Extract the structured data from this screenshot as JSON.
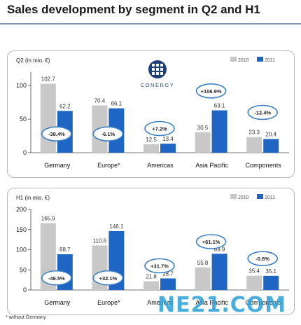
{
  "page_title": "Sales development by segment in Q2 and H1",
  "logo_text": "CONERGY",
  "footnote": "* without Germany",
  "watermark": "NE21.COM",
  "colors": {
    "series_2010": "#c8c8c8",
    "series_2011": "#1f66c4",
    "badge_border": "#3a7fc6",
    "axis": "#444444"
  },
  "chart_data": [
    {
      "type": "bar",
      "ylabel": "Q2 (in mio. €)",
      "ylim": [
        0,
        120
      ],
      "yticks": [
        0,
        50,
        100
      ],
      "categories": [
        "Germany",
        "Europe*",
        "Americas",
        "Asia Pacific",
        "Components"
      ],
      "series": [
        {
          "name": "2010",
          "values": [
            102.7,
            70.4,
            12.5,
            30.5,
            23.3
          ],
          "labels": [
            "102.7",
            "70.4",
            "12.5",
            "30.5",
            "23.3"
          ]
        },
        {
          "name": "2011",
          "values": [
            62.2,
            66.1,
            13.4,
            63.1,
            20.4
          ],
          "labels": [
            "62.2",
            "66.1",
            "13.4",
            "63.1",
            "20.4"
          ]
        }
      ],
      "changes": [
        {
          "label": "-39.4%",
          "value": 28
        },
        {
          "label": "-6.1%",
          "value": 28
        },
        {
          "label": "+7.2%",
          "value": 36
        },
        {
          "label": "+106.9%",
          "value": 92
        },
        {
          "label": "-12.4%",
          "value": 60
        }
      ],
      "legend": "top-right"
    },
    {
      "type": "bar",
      "ylabel": "H1 (in mio. €)",
      "ylim": [
        0,
        200
      ],
      "yticks": [
        0,
        50,
        100,
        150,
        200
      ],
      "categories": [
        "Germany",
        "Europe*",
        "Americas",
        "Asia Pacific",
        "Components"
      ],
      "series": [
        {
          "name": "2010",
          "values": [
            165.9,
            110.6,
            21.8,
            55.8,
            35.4
          ],
          "labels": [
            "165.9",
            "110.6",
            "21.8",
            "55.8",
            "35.4"
          ]
        },
        {
          "name": "2011",
          "values": [
            88.7,
            146.1,
            28.7,
            89.9,
            35.1
          ],
          "labels": [
            "88.7",
            "146.1",
            "28.7",
            "89.9",
            "35.1"
          ]
        }
      ],
      "changes": [
        {
          "label": "-46.5%",
          "value": 30
        },
        {
          "label": "+32.1%",
          "value": 30
        },
        {
          "label": "+31.7%",
          "value": 60
        },
        {
          "label": "+61.1%",
          "value": 120
        },
        {
          "label": "-0.8%",
          "value": 78
        }
      ],
      "legend": "top-right"
    }
  ]
}
